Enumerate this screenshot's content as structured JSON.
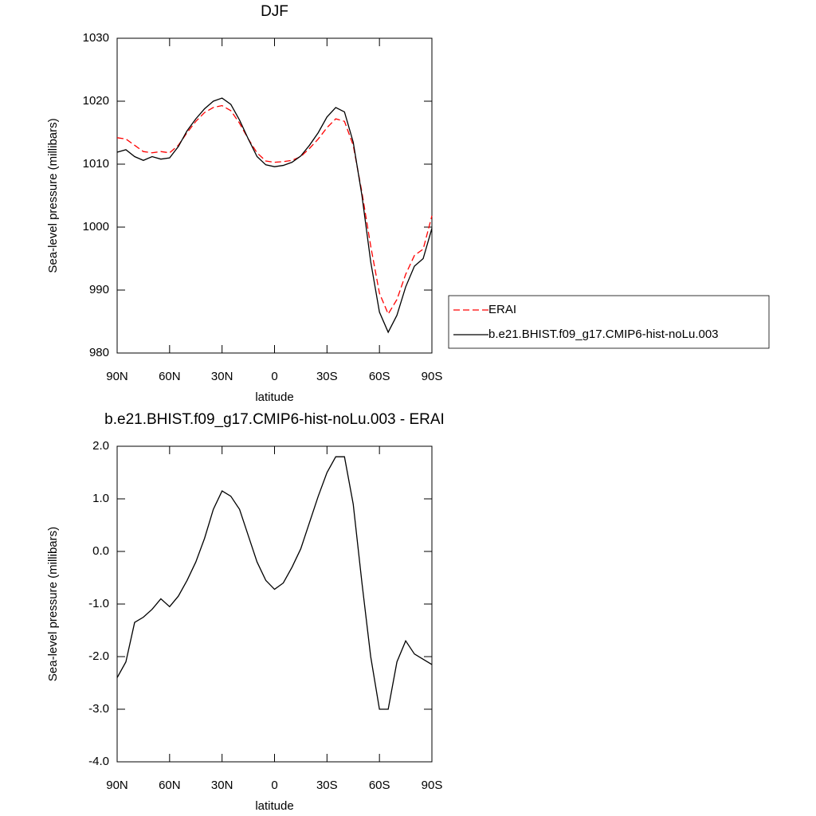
{
  "chart_data": [
    {
      "type": "line",
      "title": "DJF",
      "x_label": "latitude",
      "y_label": "Sea-level pressure (millibars)",
      "x": [
        90,
        85,
        80,
        75,
        70,
        65,
        60,
        55,
        50,
        45,
        40,
        35,
        30,
        25,
        20,
        15,
        10,
        5,
        0,
        -5,
        -10,
        -15,
        -20,
        -25,
        -30,
        -35,
        -40,
        -45,
        -50,
        -55,
        -60,
        -65,
        -70,
        -75,
        -80,
        -85,
        -90
      ],
      "series": [
        {
          "name": "ERAI",
          "color": "#ff0000",
          "line_style": "dashed",
          "values": [
            1014.2,
            1014.0,
            1013.0,
            1012.0,
            1011.8,
            1012.0,
            1011.8,
            1013.0,
            1015.0,
            1016.8,
            1018.2,
            1019.0,
            1019.3,
            1018.5,
            1016.5,
            1014.0,
            1011.8,
            1010.5,
            1010.3,
            1010.4,
            1010.6,
            1011.2,
            1012.5,
            1014.0,
            1015.8,
            1017.2,
            1016.8,
            1013.0,
            1005.5,
            997.0,
            989.5,
            986.2,
            988.5,
            992.5,
            995.5,
            996.5,
            1001.8
          ]
        },
        {
          "name": "b.e21.BHIST.f09_g17.CMIP6-hist-noLu.003",
          "color": "#000000",
          "line_style": "solid",
          "values": [
            1011.9,
            1012.3,
            1011.2,
            1010.6,
            1011.2,
            1010.8,
            1011.0,
            1012.8,
            1015.3,
            1017.2,
            1018.8,
            1020.0,
            1020.5,
            1019.5,
            1017.0,
            1014.0,
            1011.2,
            1009.9,
            1009.6,
            1009.8,
            1010.3,
            1011.3,
            1013.0,
            1015.0,
            1017.5,
            1019.0,
            1018.3,
            1013.5,
            1005.0,
            994.5,
            986.5,
            983.3,
            986.0,
            990.5,
            993.8,
            995.0,
            999.8
          ]
        }
      ],
      "xlim": [
        90,
        -90
      ],
      "xticks": [
        {
          "value": 90,
          "label": "90N"
        },
        {
          "value": 60,
          "label": "60N"
        },
        {
          "value": 30,
          "label": "30N"
        },
        0,
        {
          "value": -30,
          "label": "30S"
        },
        {
          "value": -60,
          "label": "60S"
        },
        {
          "value": -90,
          "label": "90S"
        }
      ],
      "ylim": [
        980,
        1030
      ],
      "yticks": [
        980,
        990,
        1000,
        1010,
        1020,
        1030
      ],
      "legend": "right"
    },
    {
      "type": "line",
      "title": "b.e21.BHIST.f09_g17.CMIP6-hist-noLu.003 - ERAI",
      "x_label": "latitude",
      "y_label": "Sea-level pressure (millibars)",
      "x": [
        90,
        85,
        80,
        75,
        70,
        65,
        60,
        55,
        50,
        45,
        40,
        35,
        30,
        25,
        20,
        15,
        10,
        5,
        0,
        -5,
        -10,
        -15,
        -20,
        -25,
        -30,
        -35,
        -40,
        -45,
        -50,
        -55,
        -60,
        -65,
        -70,
        -75,
        -80,
        -85,
        -90
      ],
      "values": [
        -2.4,
        -2.1,
        -1.35,
        -1.25,
        -1.1,
        -0.9,
        -1.05,
        -0.85,
        -0.55,
        -0.2,
        0.25,
        0.8,
        1.15,
        1.05,
        0.8,
        0.3,
        -0.2,
        -0.55,
        -0.72,
        -0.6,
        -0.3,
        0.05,
        0.55,
        1.05,
        1.5,
        1.8,
        1.8,
        0.9,
        -0.6,
        -2.0,
        -3.0,
        -3.0,
        -2.1,
        -1.7,
        -1.95,
        -2.05,
        -2.15
      ],
      "color": "#000000",
      "xlim": [
        90,
        -90
      ],
      "xticks": [
        {
          "value": 90,
          "label": "90N"
        },
        {
          "value": 60,
          "label": "60N"
        },
        {
          "value": 30,
          "label": "30N"
        },
        0,
        {
          "value": -30,
          "label": "30S"
        },
        {
          "value": -60,
          "label": "60S"
        },
        {
          "value": -90,
          "label": "90S"
        }
      ],
      "ylim": [
        -4,
        2
      ],
      "yticks": [
        {
          "value": -4,
          "label": "-4.0"
        },
        {
          "value": -3,
          "label": "-3.0"
        },
        {
          "value": -2,
          "label": "-2.0"
        },
        {
          "value": -1,
          "label": "-1.0"
        },
        {
          "value": 0,
          "label": "0.0"
        },
        {
          "value": 1,
          "label": "1.0"
        },
        {
          "value": 2,
          "label": "2.0"
        }
      ]
    }
  ]
}
